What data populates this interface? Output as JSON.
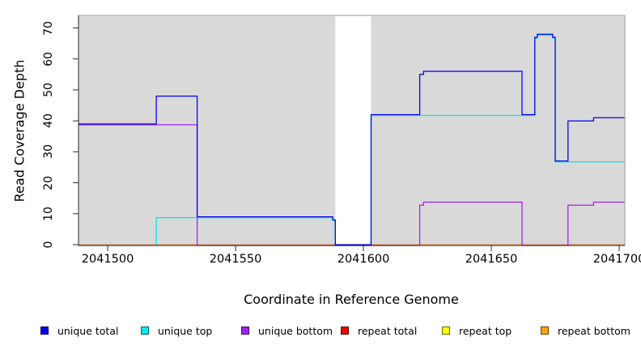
{
  "chart_data": {
    "type": "line",
    "step_interpolation": true,
    "title": "",
    "xlabel": "Coordinate in Reference Genome",
    "ylabel": "Read Coverage Depth",
    "x_range": [
      2041488.6,
      2041702.2
    ],
    "y_range": [
      0,
      73.8
    ],
    "x_ticks": [
      2041500,
      2041550,
      2041600,
      2041650,
      2041700
    ],
    "y_ticks": [
      0,
      10,
      20,
      30,
      40,
      50,
      60,
      70
    ],
    "grid": false,
    "plot_background_color": "#d9d9d9",
    "masked_region": {
      "x_start": 2041589,
      "x_end": 2041603,
      "color": "#ffffff"
    },
    "legend_position": "bottom",
    "series": [
      {
        "name": "unique total",
        "color": "#0000ee",
        "points": [
          [
            2041488.6,
            39
          ],
          [
            2041519,
            48
          ],
          [
            2041535,
            9
          ],
          [
            2041588,
            8
          ],
          [
            2041589,
            0
          ],
          [
            2041603,
            42
          ],
          [
            2041622,
            55
          ],
          [
            2041623.5,
            56
          ],
          [
            2041662,
            42
          ],
          [
            2041667,
            67
          ],
          [
            2041668,
            68
          ],
          [
            2041674,
            67
          ],
          [
            2041675,
            27
          ],
          [
            2041680,
            40
          ],
          [
            2041690,
            41
          ]
        ],
        "x_end": 2041702.2
      },
      {
        "name": "unique top",
        "color": "#00e6e6",
        "points": [
          [
            2041488.6,
            0
          ],
          [
            2041519,
            9
          ],
          [
            2041588,
            8
          ],
          [
            2041589,
            0
          ],
          [
            2041603,
            42
          ],
          [
            2041667,
            67
          ],
          [
            2041668,
            68
          ],
          [
            2041674,
            67
          ],
          [
            2041675,
            27
          ]
        ],
        "x_end": 2041702.2
      },
      {
        "name": "unique bottom",
        "color": "#a020f0",
        "points": [
          [
            2041488.6,
            39
          ],
          [
            2041535,
            0
          ],
          [
            2041622,
            13
          ],
          [
            2041623.5,
            14
          ],
          [
            2041662,
            0
          ],
          [
            2041680,
            13
          ],
          [
            2041690,
            14
          ]
        ],
        "x_end": 2041702.2
      },
      {
        "name": "repeat total",
        "color": "#ee0000",
        "points": [
          [
            2041488.6,
            0
          ]
        ],
        "x_end": 2041702.2
      },
      {
        "name": "repeat top",
        "color": "#ffff00",
        "points": [
          [
            2041488.6,
            0
          ]
        ],
        "x_end": 2041702.2
      },
      {
        "name": "repeat bottom",
        "color": "#ffa500",
        "points": [
          [
            2041488.6,
            0
          ]
        ],
        "x_end": 2041702.2
      }
    ]
  },
  "legend": {
    "items": [
      {
        "label": "unique total",
        "color": "#0000ee"
      },
      {
        "label": "unique top",
        "color": "#00eeee"
      },
      {
        "label": "unique bottom",
        "color": "#a020f0"
      },
      {
        "label": "repeat total",
        "color": "#ee0000"
      },
      {
        "label": "repeat top",
        "color": "#ffff00"
      },
      {
        "label": "repeat bottom",
        "color": "#ffa500"
      }
    ]
  }
}
